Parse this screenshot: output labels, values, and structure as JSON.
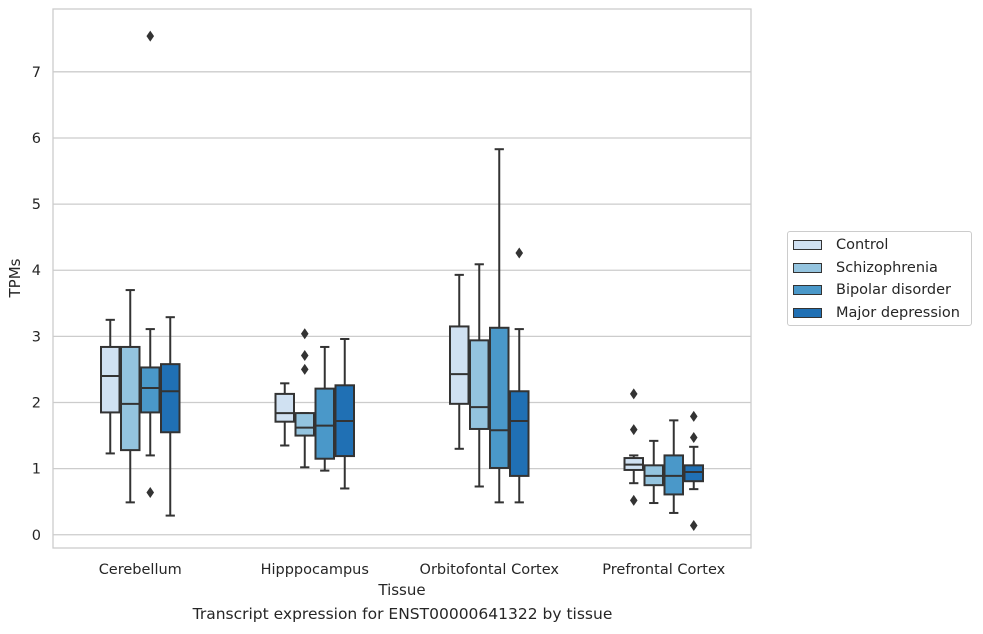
{
  "chart_data": {
    "type": "box",
    "title": "",
    "xlabel": "Tissue",
    "ylabel": "TPMs",
    "ylim": [
      -0.2,
      7.95
    ],
    "yticks": [
      0,
      1,
      2,
      3,
      4,
      5,
      6,
      7
    ],
    "grid": "horizontal",
    "legend_position": "right",
    "categories": [
      "Cerebellum",
      "Hipppocampus",
      "Orbitofontal Cortex",
      "Prefrontal Cortex"
    ],
    "series": [
      {
        "name": "Control",
        "color": "#d0e1f2",
        "boxes": [
          {
            "q1": 1.85,
            "median": 2.4,
            "q3": 2.84,
            "whisker_low": 1.23,
            "whisker_high": 3.25,
            "outliers": []
          },
          {
            "q1": 1.71,
            "median": 1.84,
            "q3": 2.13,
            "whisker_low": 1.35,
            "whisker_high": 2.29,
            "outliers": []
          },
          {
            "q1": 1.98,
            "median": 2.43,
            "q3": 3.15,
            "whisker_low": 1.3,
            "whisker_high": 3.93,
            "outliers": []
          },
          {
            "q1": 0.98,
            "median": 1.06,
            "q3": 1.16,
            "whisker_low": 0.78,
            "whisker_high": 1.2,
            "outliers": [
              2.13,
              1.59,
              0.52
            ]
          }
        ]
      },
      {
        "name": "Schizophrenia",
        "color": "#94c4df",
        "boxes": [
          {
            "q1": 1.28,
            "median": 1.98,
            "q3": 2.84,
            "whisker_low": 0.49,
            "whisker_high": 3.7,
            "outliers": []
          },
          {
            "q1": 1.5,
            "median": 1.62,
            "q3": 1.84,
            "whisker_low": 1.02,
            "whisker_high": 1.84,
            "outliers": [
              3.04,
              2.71,
              2.5
            ]
          },
          {
            "q1": 1.6,
            "median": 1.93,
            "q3": 2.94,
            "whisker_low": 0.73,
            "whisker_high": 4.09,
            "outliers": []
          },
          {
            "q1": 0.75,
            "median": 0.89,
            "q3": 1.05,
            "whisker_low": 0.48,
            "whisker_high": 1.42,
            "outliers": []
          }
        ]
      },
      {
        "name": "Bipolar disorder",
        "color": "#4a98c9",
        "boxes": [
          {
            "q1": 1.85,
            "median": 2.22,
            "q3": 2.53,
            "whisker_low": 1.2,
            "whisker_high": 3.11,
            "outliers": [
              7.54,
              0.64
            ]
          },
          {
            "q1": 1.15,
            "median": 1.65,
            "q3": 2.21,
            "whisker_low": 0.97,
            "whisker_high": 2.84,
            "outliers": []
          },
          {
            "q1": 1.01,
            "median": 1.58,
            "q3": 3.13,
            "whisker_low": 0.49,
            "whisker_high": 5.83,
            "outliers": []
          },
          {
            "q1": 0.61,
            "median": 0.89,
            "q3": 1.2,
            "whisker_low": 0.33,
            "whisker_high": 1.73,
            "outliers": []
          }
        ]
      },
      {
        "name": "Major depression",
        "color": "#2070b4",
        "boxes": [
          {
            "q1": 1.55,
            "median": 2.17,
            "q3": 2.58,
            "whisker_low": 0.29,
            "whisker_high": 3.29,
            "outliers": []
          },
          {
            "q1": 1.19,
            "median": 1.72,
            "q3": 2.26,
            "whisker_low": 0.7,
            "whisker_high": 2.96,
            "outliers": []
          },
          {
            "q1": 0.89,
            "median": 1.72,
            "q3": 2.17,
            "whisker_low": 0.49,
            "whisker_high": 3.11,
            "outliers": [
              4.26
            ]
          },
          {
            "q1": 0.81,
            "median": 0.95,
            "q3": 1.05,
            "whisker_low": 0.69,
            "whisker_high": 1.33,
            "outliers": [
              1.79,
              1.47,
              0.14
            ]
          }
        ]
      }
    ]
  },
  "caption": "Transcript expression for ENST00000641322 by tissue"
}
